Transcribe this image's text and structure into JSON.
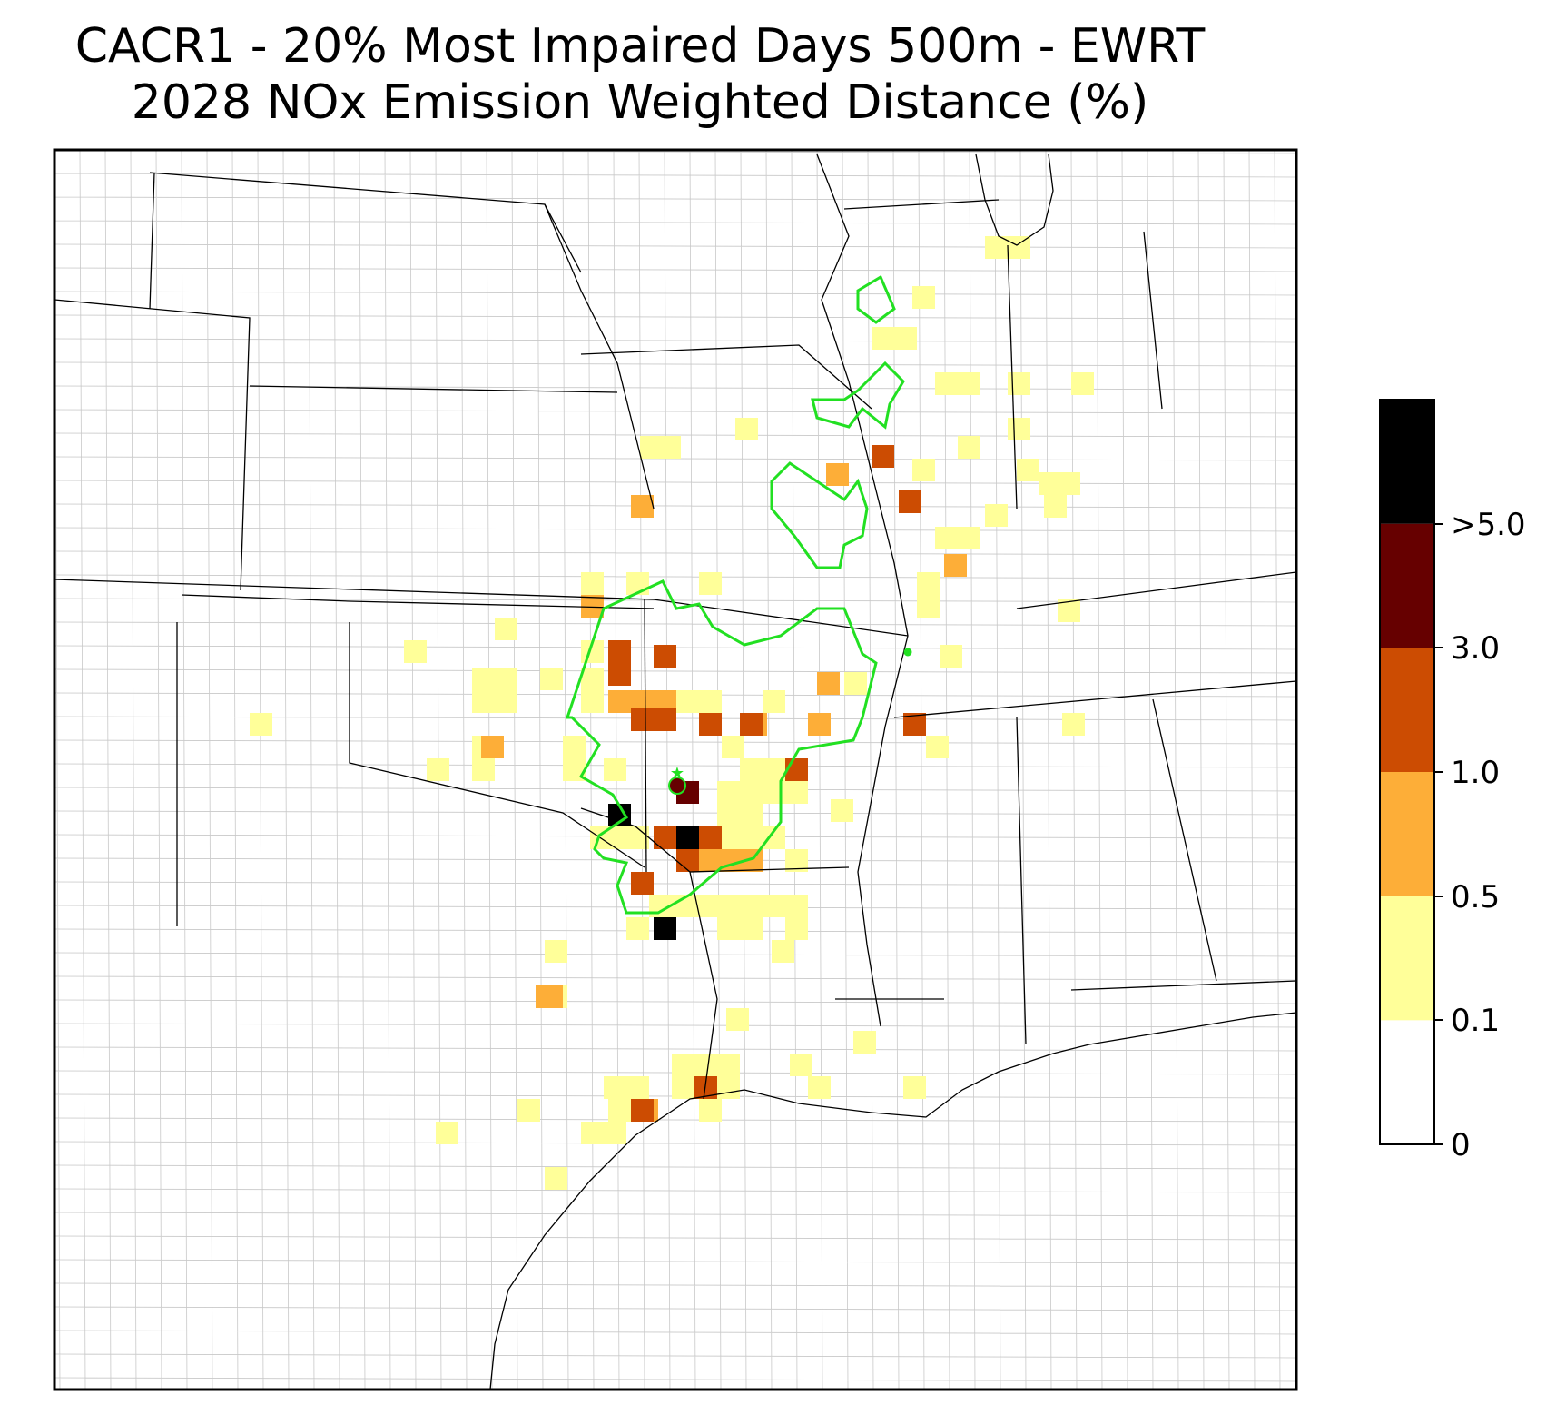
{
  "title": {
    "line1": "CACR1 - 20% Most Impaired Days 500m - EWRT",
    "line2": "2028 NOx Emission Weighted Distance (%)"
  },
  "colorbar": {
    "tick_labels": [
      "0",
      "0.1",
      "0.5",
      "1.0",
      "3.0",
      ">5.0"
    ],
    "bins": [
      {
        "range": "0-0.1",
        "color": "#ffffff"
      },
      {
        "range": "0.1-0.5",
        "color": "#ffff99"
      },
      {
        "range": "0.5-1.0",
        "color": "#fdae38"
      },
      {
        "range": "1.0-3.0",
        "color": "#cc4c02"
      },
      {
        "range": "3.0-5.0",
        "color": "#660000"
      },
      {
        "range": ">5.0",
        "color": "#000000"
      }
    ]
  },
  "colors": {
    "contour": "#22e022",
    "state_border": "#000000",
    "county_border": "#9a9a9a"
  }
}
